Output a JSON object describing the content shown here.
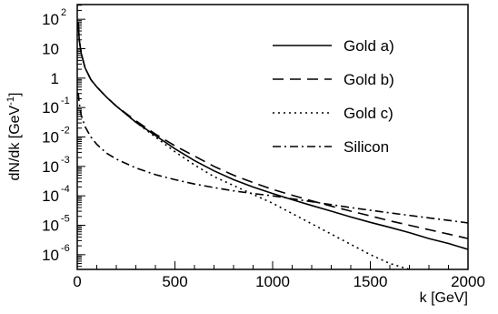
{
  "chart_data": {
    "type": "line",
    "title": "",
    "xlabel": "k [GeV]",
    "ylabel": "dN/dk [GeV",
    "ylabel_exp": "-1",
    "ylabel_close": "]",
    "xlim": [
      0,
      2000
    ],
    "ylim_log10": [
      -6.5,
      2.5
    ],
    "y_scale": "log",
    "grid": false,
    "legend_position": "top-right",
    "x_ticks": [
      {
        "value": 0,
        "label": "0"
      },
      {
        "value": 500,
        "label": "500"
      },
      {
        "value": 1000,
        "label": "1000"
      },
      {
        "value": 1500,
        "label": "1500"
      },
      {
        "value": 2000,
        "label": "2000"
      }
    ],
    "y_ticks": [
      {
        "exp": 2,
        "base": "10",
        "sup": "2"
      },
      {
        "exp": 1,
        "base": "10",
        "sup": ""
      },
      {
        "exp": 0,
        "base": "1",
        "sup": ""
      },
      {
        "exp": -1,
        "base": "10",
        "sup": "-1"
      },
      {
        "exp": -2,
        "base": "10",
        "sup": "-2"
      },
      {
        "exp": -3,
        "base": "10",
        "sup": "-3"
      },
      {
        "exp": -4,
        "base": "10",
        "sup": "-4"
      },
      {
        "exp": -5,
        "base": "10",
        "sup": "-5"
      },
      {
        "exp": -6,
        "base": "10",
        "sup": "-6"
      }
    ],
    "series": [
      {
        "name": "Gold a)",
        "style": "solid",
        "color": "#000000",
        "x": [
          5,
          10,
          20,
          40,
          70,
          100,
          150,
          200,
          300,
          400,
          500,
          600,
          700,
          800,
          900,
          1000,
          1100,
          1200,
          1300,
          1400,
          1500,
          1600,
          1700,
          1800,
          1900,
          2000
        ],
        "log10_y": [
          1.9,
          1.3,
          0.85,
          0.35,
          -0.05,
          -0.3,
          -0.65,
          -0.95,
          -1.5,
          -1.95,
          -2.4,
          -2.8,
          -3.15,
          -3.45,
          -3.7,
          -3.92,
          -4.13,
          -4.33,
          -4.52,
          -4.72,
          -4.9,
          -5.07,
          -5.25,
          -5.45,
          -5.62,
          -5.82
        ]
      },
      {
        "name": "Gold b)",
        "style": "dashed",
        "color": "#000000",
        "x": [
          5,
          10,
          20,
          40,
          70,
          100,
          150,
          200,
          300,
          400,
          500,
          600,
          700,
          800,
          900,
          1000,
          1100,
          1200,
          1300,
          1400,
          1500,
          1600,
          1700,
          1800,
          1900,
          2000
        ],
        "log10_y": [
          1.9,
          1.3,
          0.85,
          0.35,
          -0.05,
          -0.3,
          -0.65,
          -0.95,
          -1.45,
          -1.9,
          -2.3,
          -2.65,
          -3.0,
          -3.3,
          -3.55,
          -3.78,
          -3.98,
          -4.17,
          -4.35,
          -4.52,
          -4.68,
          -4.85,
          -5.0,
          -5.15,
          -5.3,
          -5.45
        ]
      },
      {
        "name": "Gold c)",
        "style": "dotted",
        "color": "#000000",
        "x": [
          5,
          10,
          20,
          40,
          70,
          100,
          150,
          200,
          300,
          400,
          500,
          600,
          700,
          800,
          900,
          1000,
          1100,
          1200,
          1300,
          1400,
          1500,
          1600,
          1700
        ],
        "log10_y": [
          1.9,
          1.3,
          0.85,
          0.35,
          -0.05,
          -0.3,
          -0.65,
          -0.95,
          -1.5,
          -2.0,
          -2.5,
          -2.95,
          -3.35,
          -3.65,
          -3.95,
          -4.25,
          -4.6,
          -4.95,
          -5.3,
          -5.65,
          -6.0,
          -6.3,
          -6.5
        ]
      },
      {
        "name": "Silicon",
        "style": "dashdot",
        "color": "#000000",
        "x": [
          5,
          10,
          20,
          40,
          70,
          100,
          150,
          200,
          300,
          400,
          500,
          600,
          700,
          800,
          900,
          1000,
          1200,
          1400,
          1600,
          1800,
          2000
        ],
        "log10_y": [
          -0.5,
          -0.85,
          -1.25,
          -1.65,
          -2.0,
          -2.25,
          -2.55,
          -2.75,
          -3.05,
          -3.28,
          -3.45,
          -3.6,
          -3.72,
          -3.83,
          -3.92,
          -4.0,
          -4.2,
          -4.4,
          -4.58,
          -4.75,
          -4.92
        ]
      }
    ]
  }
}
